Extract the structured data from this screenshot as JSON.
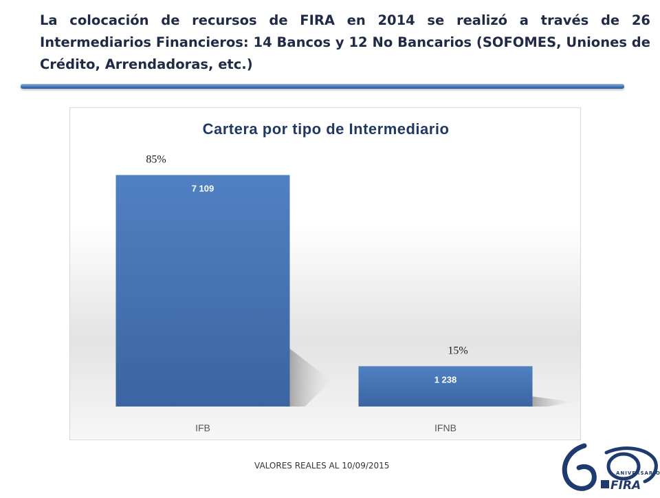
{
  "slide": {
    "title": "La colocación de recursos de FIRA en 2014 se realizó a través de 26 Intermediarios Financieros: 14 Bancos y 12 No Bancarios (SOFOMES, Uniones de Crédito, Arrendadoras, etc.)",
    "footer_note": "VALORES REALES AL 10/09/2015"
  },
  "logo": {
    "big_text": "60",
    "small_text": "ANIVERSARIO",
    "brand": "FIRA"
  },
  "colors": {
    "bar_top": "#5081c3",
    "bar_bottom": "#3b64a0",
    "title_text": "#1f3864",
    "rule": "#3f72b6"
  },
  "chart_data": {
    "type": "bar",
    "title": "Cartera por tipo de Intermediario",
    "categories": [
      "IFB",
      "IFNB"
    ],
    "values": [
      7109,
      1238
    ],
    "value_labels": [
      "7 109",
      "1 238"
    ],
    "percent_labels": [
      "85%",
      "15%"
    ],
    "ylim": [
      0,
      7900
    ],
    "xlabel": "",
    "ylabel": "",
    "grid": false,
    "legend": "none"
  }
}
